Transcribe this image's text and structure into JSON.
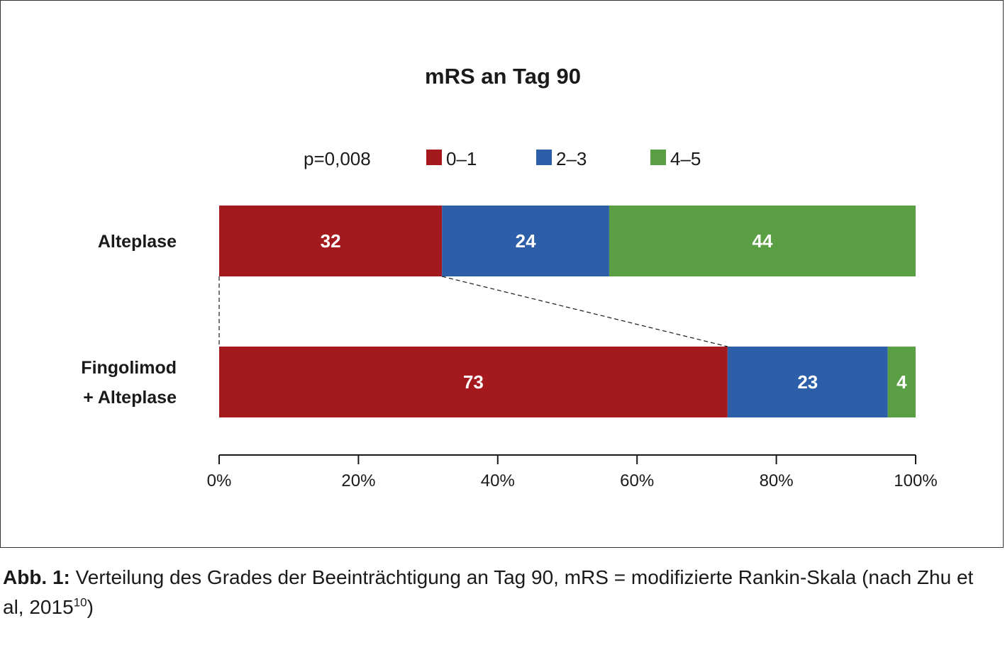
{
  "chart_data": {
    "type": "bar",
    "orientation": "horizontal",
    "stacked": true,
    "title": "mRS an Tag 90",
    "annotation": "p=0,008",
    "categories": [
      "Alteplase",
      "Fingolimod\n+ Alteplase"
    ],
    "series": [
      {
        "name": "0–1",
        "color": "#a3191e",
        "values": [
          32,
          73
        ]
      },
      {
        "name": "2–3",
        "color": "#2d5ea8",
        "values": [
          24,
          23
        ]
      },
      {
        "name": "4–5",
        "color": "#5b9f45",
        "values": [
          44,
          4
        ]
      }
    ],
    "xlim": [
      0,
      100
    ],
    "xticks": [
      "0%",
      "20%",
      "40%",
      "60%",
      "80%",
      "100%"
    ],
    "legend_position": "top",
    "grid": false
  },
  "caption": {
    "lead": "Abb. 1:",
    "text": " Verteilung des Grades der Beeinträchtigung an Tag 90, mRS = modifizierte Rankin-Skala (nach Zhu et al, 2015",
    "superscript": "10",
    "tail": ")"
  }
}
